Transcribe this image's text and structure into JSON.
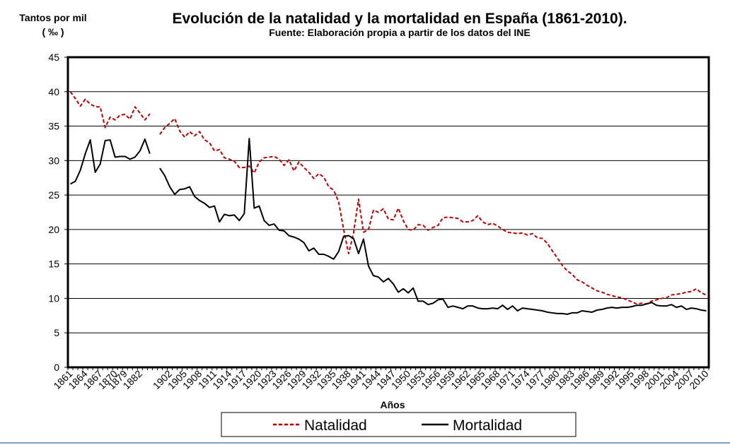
{
  "chart_data": {
    "type": "line",
    "title": "Evolución de la natalidad y la mortalidad en España (1861-2010).",
    "subtitle": "Fuente: Elaboración propia a partir de los datos del INE",
    "ylabel_line1": "Tantos por mil",
    "ylabel_line2": "( ‰ )",
    "xlabel": "Años",
    "ylim": [
      0,
      45
    ],
    "yticks": [
      0,
      5,
      10,
      15,
      20,
      25,
      30,
      35,
      40,
      45
    ],
    "grid": "horizontal",
    "legend_position": "bottom",
    "categories": [
      "1861",
      "1862",
      "1863",
      "1864",
      "1865",
      "1866",
      "1867",
      "1868",
      "1869",
      "1870",
      "1878",
      "1879",
      "1880",
      "1881",
      "1882",
      "1883",
      "1884",
      "1885",
      "1900",
      "1901",
      "1902",
      "1903",
      "1904",
      "1905",
      "1906",
      "1907",
      "1908",
      "1909",
      "1910",
      "1911",
      "1912",
      "1913",
      "1914",
      "1915",
      "1916",
      "1917",
      "1918",
      "1919",
      "1920",
      "1921",
      "1922",
      "1923",
      "1924",
      "1925",
      "1926",
      "1927",
      "1928",
      "1929",
      "1930",
      "1931",
      "1932",
      "1933",
      "1934",
      "1935",
      "1936",
      "1937",
      "1938",
      "1939",
      "1940",
      "1941",
      "1942",
      "1943",
      "1944",
      "1945",
      "1946",
      "1947",
      "1948",
      "1949",
      "1950",
      "1951",
      "1952",
      "1953",
      "1954",
      "1955",
      "1956",
      "1957",
      "1958",
      "1959",
      "1960",
      "1961",
      "1962",
      "1963",
      "1964",
      "1965",
      "1966",
      "1967",
      "1968",
      "1969",
      "1970",
      "1971",
      "1972",
      "1973",
      "1974",
      "1975",
      "1976",
      "1977",
      "1978",
      "1979",
      "1980",
      "1981",
      "1982",
      "1983",
      "1984",
      "1985",
      "1986",
      "1987",
      "1988",
      "1989",
      "1990",
      "1991",
      "1992",
      "1993",
      "1994",
      "1995",
      "1996",
      "1997",
      "1998",
      "1999",
      "2000",
      "2001",
      "2002",
      "2003",
      "2004",
      "2005",
      "2006",
      "2007",
      "2008",
      "2009",
      "2010"
    ],
    "tick_labels": [
      "1861",
      "1864",
      "1867",
      "1870",
      "1879",
      "1882",
      "1902",
      "1905",
      "1908",
      "1911",
      "1914",
      "1917",
      "1920",
      "1923",
      "1926",
      "1929",
      "1932",
      "1935",
      "1938",
      "1941",
      "1944",
      "1947",
      "1950",
      "1953",
      "1956",
      "1959",
      "1962",
      "1965",
      "1968",
      "1971",
      "1974",
      "1977",
      "1980",
      "1983",
      "1986",
      "1989",
      "1992",
      "1995",
      "1998",
      "2001",
      "2004",
      "2007",
      "2010"
    ],
    "series": [
      {
        "name": "Natalidad",
        "color": "#c00000",
        "dash": "dashed",
        "values": [
          40.0,
          39.0,
          37.9,
          38.9,
          38.2,
          37.8,
          37.8,
          34.8,
          36.3,
          35.9,
          36.6,
          36.7,
          36.0,
          37.8,
          36.9,
          35.9,
          36.8,
          null,
          33.8,
          34.8,
          35.4,
          36.1,
          34.3,
          33.4,
          34.2,
          33.6,
          34.2,
          33.0,
          32.6,
          31.4,
          31.6,
          30.4,
          30.2,
          29.9,
          29.0,
          29.0,
          29.2,
          28.2,
          29.8,
          30.4,
          30.5,
          30.6,
          30.2,
          29.3,
          30.1,
          28.5,
          29.8,
          29.0,
          28.3,
          27.4,
          28.1,
          27.6,
          26.2,
          25.7,
          24.0,
          20.0,
          16.5,
          19.5,
          24.4,
          19.6,
          20.0,
          22.8,
          22.5,
          23.0,
          21.5,
          21.4,
          23.1,
          21.3,
          20.0,
          19.9,
          20.7,
          20.6,
          19.9,
          20.3,
          20.6,
          21.7,
          21.8,
          21.7,
          21.6,
          21.1,
          21.1,
          21.3,
          22.0,
          21.1,
          20.7,
          20.9,
          20.5,
          20.0,
          19.6,
          19.5,
          19.4,
          19.5,
          19.2,
          19.4,
          18.8,
          18.7,
          18.0,
          16.9,
          15.9,
          14.8,
          14.0,
          13.5,
          12.7,
          12.4,
          11.9,
          11.5,
          11.1,
          10.9,
          10.6,
          10.4,
          10.2,
          10.1,
          9.8,
          9.5,
          9.2,
          9.3,
          9.2,
          9.6,
          9.8,
          10.0,
          10.1,
          10.5,
          10.6,
          10.7,
          10.9,
          11.0,
          11.4,
          10.8,
          10.5
        ]
      },
      {
        "name": "Mortalidad",
        "color": "#000000",
        "dash": "solid",
        "values": [
          26.6,
          27.0,
          28.6,
          31.0,
          33.0,
          28.3,
          29.5,
          32.9,
          33.0,
          30.5,
          30.6,
          30.6,
          30.2,
          30.5,
          31.4,
          33.1,
          31.0,
          null,
          28.9,
          27.8,
          26.2,
          25.1,
          25.8,
          25.9,
          26.2,
          24.8,
          24.2,
          23.8,
          23.2,
          23.4,
          21.1,
          22.2,
          22.0,
          22.1,
          21.3,
          22.3,
          33.2,
          23.1,
          23.4,
          21.3,
          20.6,
          20.8,
          19.9,
          19.8,
          19.1,
          18.9,
          18.6,
          18.1,
          16.9,
          17.3,
          16.4,
          16.4,
          16.1,
          15.7,
          16.8,
          19.0,
          19.1,
          18.7,
          16.5,
          18.6,
          14.7,
          13.3,
          13.1,
          12.4,
          12.9,
          12.1,
          10.9,
          11.4,
          10.8,
          11.5,
          9.6,
          9.6,
          9.1,
          9.3,
          9.8,
          9.9,
          8.7,
          8.9,
          8.7,
          8.5,
          8.9,
          8.9,
          8.6,
          8.5,
          8.5,
          8.6,
          8.5,
          9.0,
          8.4,
          8.9,
          8.2,
          8.6,
          8.5,
          8.4,
          8.3,
          8.2,
          8.0,
          7.9,
          7.8,
          7.8,
          7.7,
          7.9,
          7.9,
          8.2,
          8.1,
          8.0,
          8.3,
          8.4,
          8.6,
          8.7,
          8.6,
          8.7,
          8.7,
          8.8,
          9.0,
          9.0,
          9.2,
          9.4,
          9.0,
          8.9,
          8.9,
          9.1,
          8.7,
          8.9,
          8.4,
          8.6,
          8.5,
          8.3,
          8.2
        ]
      }
    ]
  }
}
